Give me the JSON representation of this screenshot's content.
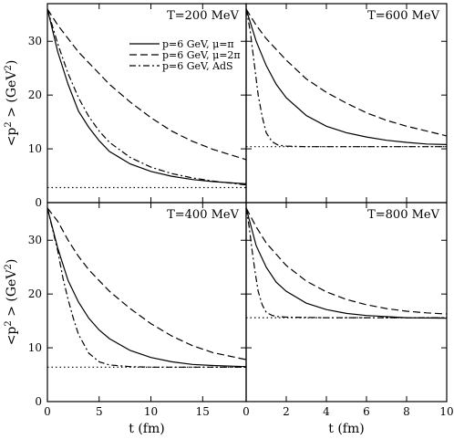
{
  "chart_data": [
    {
      "type": "line",
      "panel": "top-left",
      "title": "T=200 MeV",
      "xlabel": "",
      "ylabel": "<p² > (GeV²)",
      "xlim": [
        0,
        19.2
      ],
      "ylim": [
        0,
        37
      ],
      "xticks": [
        0,
        5,
        10,
        15
      ],
      "yticks": [
        0,
        10,
        20,
        30
      ],
      "legend": "top-center",
      "series": [
        {
          "name": "p=6 GeV, μ=π",
          "style": "solid",
          "x": [
            0,
            1,
            2,
            3,
            4,
            5,
            6,
            8,
            10,
            12,
            14,
            16,
            19.2
          ],
          "y": [
            36,
            28,
            22,
            17,
            14,
            11.5,
            9.5,
            7.2,
            5.8,
            4.9,
            4.3,
            3.9,
            3.5
          ]
        },
        {
          "name": "p=6 GeV, μ=2π",
          "style": "dashed",
          "x": [
            0,
            1,
            2,
            3,
            4,
            6,
            8,
            10,
            12,
            14,
            16,
            19.2
          ],
          "y": [
            36,
            33,
            30.5,
            28,
            26,
            22,
            18.7,
            15.8,
            13.3,
            11.4,
            9.9,
            8.0
          ]
        },
        {
          "name": "p=6 GeV, AdS",
          "style": "dashdot",
          "x": [
            0,
            1,
            2,
            3,
            4,
            5,
            6,
            8,
            10,
            12,
            14,
            16,
            19.2
          ],
          "y": [
            36,
            29.5,
            24,
            19.5,
            16,
            13.3,
            11.2,
            8.4,
            6.6,
            5.4,
            4.6,
            4.0,
            3.3
          ]
        },
        {
          "name": "",
          "style": "dotted",
          "x": [
            0,
            19.2
          ],
          "y": [
            2.8,
            2.8
          ]
        }
      ]
    },
    {
      "type": "line",
      "panel": "top-right",
      "title": "T=600 MeV",
      "xlabel": "",
      "ylabel": "",
      "xlim": [
        0,
        10
      ],
      "ylim": [
        0,
        37
      ],
      "xticks": [
        0,
        2,
        4,
        6,
        8,
        10
      ],
      "yticks": [
        0,
        10,
        20,
        30
      ],
      "series": [
        {
          "name": "p=6 GeV, μ=π",
          "style": "solid",
          "x": [
            0,
            0.5,
            1,
            1.5,
            2,
            3,
            4,
            5,
            6,
            7,
            8,
            9,
            10
          ],
          "y": [
            36,
            30,
            25.5,
            22,
            19.5,
            16.2,
            14.2,
            13,
            12.2,
            11.6,
            11.2,
            10.9,
            10.8
          ]
        },
        {
          "name": "p=6 GeV, μ=2π",
          "style": "dashed",
          "x": [
            0,
            0.5,
            1,
            2,
            3,
            4,
            5,
            6,
            7,
            8,
            9,
            10
          ],
          "y": [
            36,
            33,
            30.5,
            26.5,
            23,
            20.5,
            18.5,
            16.7,
            15.3,
            14.2,
            13.3,
            12.4
          ]
        },
        {
          "name": "p=6 GeV, AdS",
          "style": "dashdot",
          "x": [
            0,
            0.2,
            0.4,
            0.6,
            0.8,
            1,
            1.3,
            1.6,
            2,
            3,
            4,
            6,
            8,
            10
          ],
          "y": [
            36,
            32,
            26,
            20,
            16,
            13,
            11.3,
            10.7,
            10.5,
            10.4,
            10.4,
            10.4,
            10.4,
            10.4
          ]
        },
        {
          "name": "",
          "style": "dotted",
          "x": [
            0,
            10
          ],
          "y": [
            10.4,
            10.4
          ]
        }
      ]
    },
    {
      "type": "line",
      "panel": "bottom-left",
      "title": "T=400 MeV",
      "xlabel": "t (fm)",
      "ylabel": "<p² > (GeV²)",
      "xlim": [
        0,
        19.2
      ],
      "ylim": [
        0,
        37
      ],
      "xticks": [
        0,
        5,
        10,
        15
      ],
      "yticks": [
        0,
        10,
        20,
        30
      ],
      "series": [
        {
          "name": "p=6 GeV, μ=π",
          "style": "solid",
          "x": [
            0,
            1,
            2,
            3,
            4,
            5,
            6,
            8,
            10,
            12,
            14,
            16,
            19.2
          ],
          "y": [
            36,
            28.5,
            22.5,
            18.5,
            15.5,
            13.3,
            11.7,
            9.5,
            8.2,
            7.4,
            6.9,
            6.7,
            6.5
          ]
        },
        {
          "name": "p=6 GeV, μ=2π",
          "style": "dashed",
          "x": [
            0,
            1,
            2,
            3,
            4,
            6,
            8,
            10,
            12,
            14,
            16,
            19.2
          ],
          "y": [
            36,
            33.5,
            30,
            27,
            24.5,
            20.5,
            17.3,
            14.5,
            12.2,
            10.4,
            9.1,
            7.8
          ]
        },
        {
          "name": "p=6 GeV, AdS",
          "style": "dashdot",
          "x": [
            0,
            0.5,
            1,
            1.5,
            2,
            2.5,
            3,
            4,
            5,
            6,
            8,
            10,
            12,
            16,
            19.2
          ],
          "y": [
            36,
            32,
            28,
            23,
            19,
            15.5,
            12.5,
            9,
            7.4,
            6.8,
            6.5,
            6.4,
            6.4,
            6.4,
            6.4
          ]
        },
        {
          "name": "",
          "style": "dotted",
          "x": [
            0,
            19.2
          ],
          "y": [
            6.4,
            6.4
          ]
        }
      ]
    },
    {
      "type": "line",
      "panel": "bottom-right",
      "title": "T=800 MeV",
      "xlabel": "t (fm)",
      "ylabel": "",
      "xlim": [
        0,
        10
      ],
      "ylim": [
        0,
        37
      ],
      "xticks": [
        0,
        2,
        4,
        6,
        8,
        10
      ],
      "yticks": [
        0,
        10,
        20,
        30
      ],
      "series": [
        {
          "name": "p=6 GeV, μ=π",
          "style": "solid",
          "x": [
            0,
            0.5,
            1,
            1.5,
            2,
            3,
            4,
            5,
            6,
            8,
            10
          ],
          "y": [
            36,
            29,
            25,
            22.2,
            20.5,
            18.3,
            17.1,
            16.4,
            16,
            15.6,
            15.5
          ]
        },
        {
          "name": "p=6 GeV, μ=2π",
          "style": "dashed",
          "x": [
            0,
            0.5,
            1,
            2,
            3,
            4,
            5,
            6,
            7,
            8,
            9,
            10
          ],
          "y": [
            36,
            32.5,
            29.5,
            25.3,
            22.4,
            20.4,
            19,
            18,
            17.3,
            16.8,
            16.5,
            16.3
          ]
        },
        {
          "name": "p=6 GeV, AdS",
          "style": "dashdot",
          "x": [
            0,
            0.15,
            0.3,
            0.45,
            0.6,
            0.8,
            1,
            1.3,
            1.6,
            2,
            4,
            6,
            8,
            10
          ],
          "y": [
            36,
            32.5,
            28,
            24,
            20.5,
            18,
            16.6,
            16,
            15.8,
            15.7,
            15.6,
            15.6,
            15.6,
            15.6
          ]
        },
        {
          "name": "",
          "style": "dotted",
          "x": [
            0,
            10
          ],
          "y": [
            15.6,
            15.6
          ]
        }
      ]
    }
  ]
}
